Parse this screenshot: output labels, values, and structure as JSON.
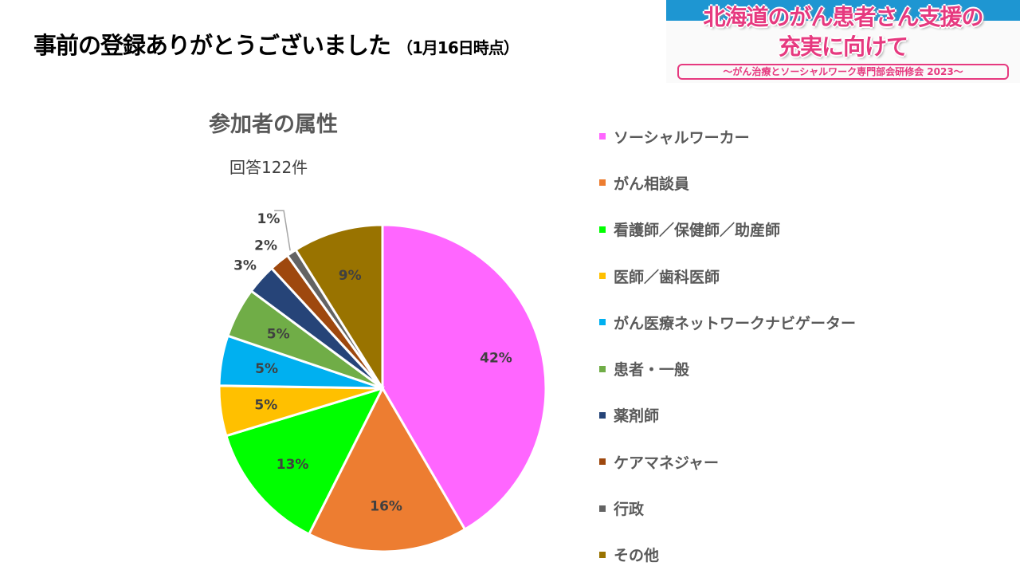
{
  "header": {
    "title": "事前の登録ありがとうございました",
    "date_note": "（1月16日時点）"
  },
  "banner": {
    "line1": "北海道のがん患者さん支援の",
    "line2": "充実に向けて",
    "subtitle": "～がん治療とソーシャルワーク専門部会研修会 2023～"
  },
  "chart_data": {
    "type": "pie",
    "title": "参加者の属性",
    "subtitle": "回答122件",
    "legend_position": "right",
    "categories": [
      "ソーシャルワーカー",
      "がん相談員",
      "看護師／保健師／助産師",
      "医師／歯科医師",
      "がん医療ネットワークナビゲーター",
      "患者・一般",
      "薬剤師",
      "ケアマネジャー",
      "行政",
      "その他"
    ],
    "values": [
      42,
      16,
      13,
      5,
      5,
      5,
      3,
      2,
      1,
      9
    ],
    "labels": [
      "42%",
      "16%",
      "13%",
      "5%",
      "5%",
      "5%",
      "3%",
      "2%",
      "1%",
      "9%"
    ],
    "colors": [
      "#ff66ff",
      "#ed7d31",
      "#00ff00",
      "#ffc000",
      "#00b0f0",
      "#70ad47",
      "#264478",
      "#9e480e",
      "#636363",
      "#997300"
    ]
  }
}
